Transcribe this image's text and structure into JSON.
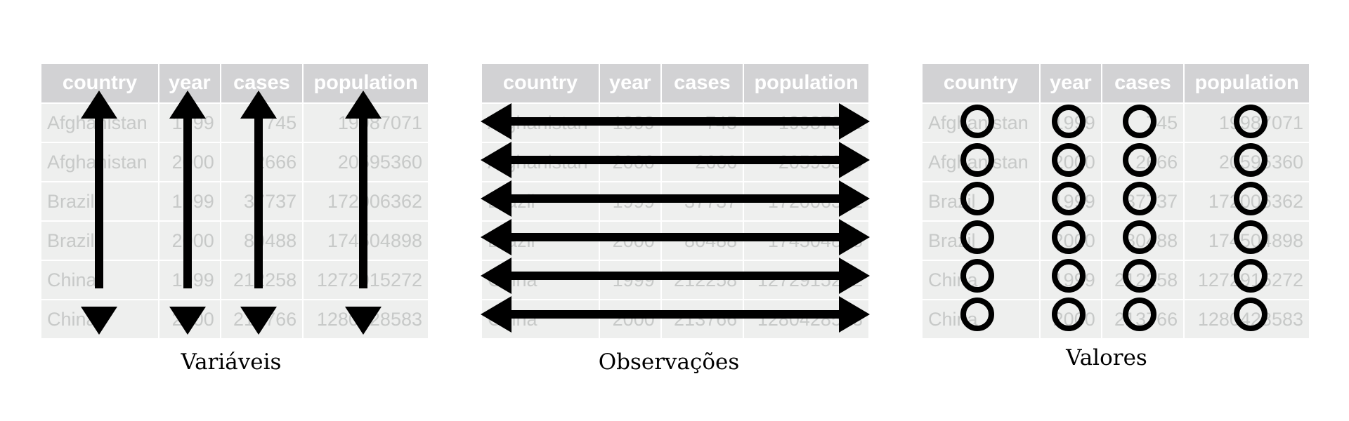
{
  "colors": {
    "header_bg": "#d2d2d4",
    "header_text": "#ffffff",
    "cell_bg": "#eeefee",
    "cell_text": "#c7c9c8",
    "mark": "#000000"
  },
  "table": {
    "columns": [
      "country",
      "year",
      "cases",
      "population"
    ],
    "rows": [
      [
        "Afghanistan",
        "1999",
        "745",
        "19987071"
      ],
      [
        "Afghanistan",
        "2000",
        "2666",
        "20595360"
      ],
      [
        "Brazil",
        "1999",
        "37737",
        "172006362"
      ],
      [
        "Brazil",
        "2000",
        "80488",
        "174504898"
      ],
      [
        "China",
        "1999",
        "212258",
        "1272915272"
      ],
      [
        "China",
        "2000",
        "213766",
        "1280428583"
      ]
    ]
  },
  "panels": [
    {
      "caption": "Variáveis",
      "marker": "vertical-double-arrow"
    },
    {
      "caption": "Observações",
      "marker": "horizontal-double-arrow"
    },
    {
      "caption": "Valores",
      "marker": "circle"
    }
  ]
}
